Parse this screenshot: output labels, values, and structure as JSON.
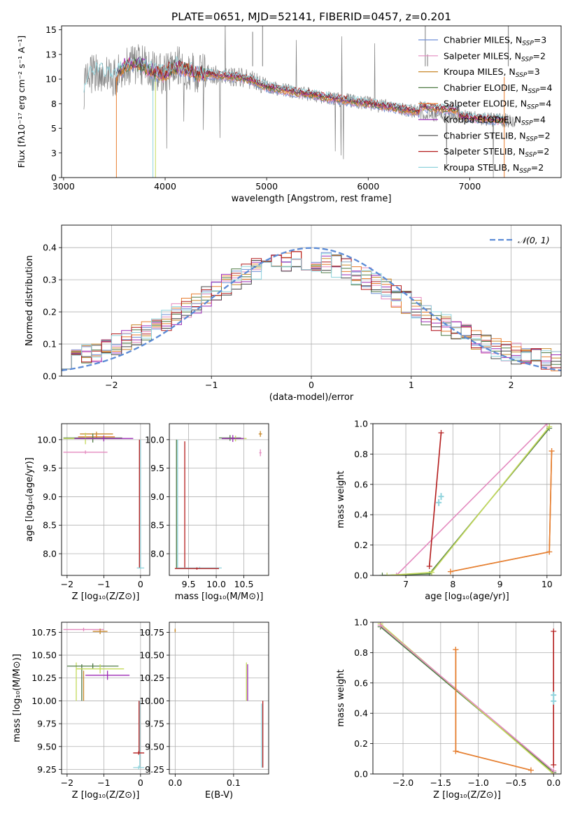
{
  "chart_data": [
    {
      "type": "line",
      "title": "PLATE=0651, MJD=52141, FIBERID=0457, z=0.201",
      "xlabel": "wavelength [Angstrom, rest frame]",
      "ylabel": "Flux [fλ10⁻¹⁷ erg cm⁻² s⁻¹ A⁻¹]",
      "xlim": [
        2980,
        7900
      ],
      "ylim": [
        0,
        15.4
      ],
      "xticks": [
        3000,
        4000,
        5000,
        6000,
        7000
      ],
      "yticks": [
        0.0,
        2.5,
        5.0,
        7.5,
        10.0,
        12.5,
        15.0
      ],
      "grid": false,
      "legend_position": "upper-right",
      "spectrum_shape": {
        "data_range": [
          3200,
          7450
        ],
        "wave": [
          3200,
          3250,
          3300,
          3400,
          3500,
          3600,
          3700,
          3800,
          3900,
          4000,
          4100,
          4200,
          4300,
          4500,
          4700,
          4850,
          5000,
          5200,
          5400,
          5600,
          5800,
          6000,
          6200,
          6400,
          6600,
          6800,
          7000,
          7200,
          7400,
          7450
        ],
        "flux": [
          9.0,
          10.2,
          10.8,
          10.6,
          10.2,
          11.4,
          11.6,
          11.3,
          10.7,
          10.5,
          11.3,
          11.0,
          10.6,
          10.4,
          10.2,
          9.9,
          9.2,
          8.8,
          8.5,
          8.1,
          7.8,
          7.5,
          7.2,
          6.8,
          6.5,
          6.3,
          6.1,
          5.9,
          5.8,
          5.8
        ]
      },
      "legend": [
        {
          "label": "Chabrier MILES, N",
          "sub": "SSP",
          "suffix": "=3",
          "color": "#6f8fd6"
        },
        {
          "label": "Salpeter MILES, N",
          "sub": "SSP",
          "suffix": "=2",
          "color": "#e48abf"
        },
        {
          "label": "Kroupa MILES, N",
          "sub": "SSP",
          "suffix": "=3",
          "color": "#c8882a"
        },
        {
          "label": "Chabrier ELODIE, N",
          "sub": "SSP",
          "suffix": "=4",
          "color": "#4f7a44"
        },
        {
          "label": "Salpeter ELODIE, N",
          "sub": "SSP",
          "suffix": "=4",
          "color": "#e87d2f"
        },
        {
          "label": "Kroupa ELODIE, N",
          "sub": "SSP",
          "suffix": "=4",
          "color": "#9b2ab4"
        },
        {
          "label": "Chabrier STELIB, N",
          "sub": "SSP",
          "suffix": "=2",
          "color": "#444444"
        },
        {
          "label": "Salpeter STELIB, N",
          "sub": "SSP",
          "suffix": "=2",
          "color": "#b31b1b"
        },
        {
          "label": "Kroupa STELIB, N",
          "sub": "SSP",
          "suffix": "=2",
          "color": "#8fd3dc"
        }
      ]
    },
    {
      "type": "line",
      "xlabel": "(data-model)/error",
      "ylabel": "Normed distribution",
      "xlim": [
        -2.5,
        2.5
      ],
      "ylim": [
        0,
        0.47
      ],
      "xticks": [
        -2,
        -1,
        0,
        1,
        2
      ],
      "yticks": [
        0.0,
        0.1,
        0.2,
        0.3,
        0.4
      ],
      "grid": true,
      "legend_position": "upper-right",
      "legend": [
        {
          "label": "𝒩(0, 1)",
          "color": "#5b8bd6",
          "style": "dashed"
        }
      ],
      "gaussian": {
        "mean": 0,
        "sigma": 1
      }
    },
    {
      "type": "scatter",
      "xlabel": "Z [log₁₀(Z/Z⊙)]",
      "ylabel": "age  [log₁₀(age/yr)]",
      "xlim": [
        -2.15,
        0.25
      ],
      "ylim": [
        7.62,
        10.28
      ],
      "xticks": [
        -2,
        -1,
        0
      ],
      "yticks": [
        8.0,
        8.5,
        9.0,
        9.5,
        10.0
      ],
      "grid": true,
      "points": [
        {
          "x": -1.2,
          "y": 10.1,
          "xerr": 0.45,
          "yerr": 0.04,
          "color": "#c8882a"
        },
        {
          "x": -1.5,
          "y": 9.78,
          "xerr": 0.6,
          "yerr": 0.03,
          "color": "#e48abf"
        },
        {
          "x": -1.2,
          "y": 10.05,
          "xerr": 0.5,
          "yerr": 0.03,
          "color": "#e87d2f"
        },
        {
          "x": -1.3,
          "y": 10.03,
          "xerr": 0.8,
          "yerr": 0.08,
          "color": "#4f7a44"
        },
        {
          "x": -1.5,
          "y": 10.02,
          "xerr": 0.6,
          "yerr": 0.1,
          "color": "#c4da5a"
        },
        {
          "x": -1.0,
          "y": 10.02,
          "xerr": 0.8,
          "yerr": 0.05,
          "color": "#9b2ab4"
        },
        {
          "x": 0.0,
          "y": 7.75,
          "xerr": 0.1,
          "yerr": 0.02,
          "color": "#8fd3dc"
        }
      ],
      "vertical_lines": [
        {
          "x": 0.0,
          "y0": 7.75,
          "y1": 10.0,
          "color": "#8fd3dc"
        },
        {
          "x": -0.03,
          "y0": 7.75,
          "y1": 10.0,
          "color": "#b31b1b"
        }
      ]
    },
    {
      "type": "scatter",
      "xlabel": "mass [log₁₀(M/M⊙)]",
      "ylabel": "",
      "xlim": [
        9.15,
        10.95
      ],
      "ylim": [
        7.62,
        10.28
      ],
      "xticks": [
        9.5,
        10.0,
        10.5
      ],
      "yticks": [
        8.0,
        8.5,
        9.0,
        9.5,
        10.0
      ],
      "grid": true,
      "points": [
        {
          "x": 10.8,
          "y": 10.1,
          "xerr": 0.03,
          "yerr": 0.05,
          "color": "#c8882a"
        },
        {
          "x": 10.8,
          "y": 9.77,
          "xerr": 0.02,
          "yerr": 0.06,
          "color": "#e48abf"
        },
        {
          "x": 10.25,
          "y": 10.03,
          "xerr": 0.2,
          "yerr": 0.05,
          "color": "#4f7a44"
        },
        {
          "x": 10.35,
          "y": 10.02,
          "xerr": 0.2,
          "yerr": 0.05,
          "color": "#c4da5a"
        },
        {
          "x": 10.3,
          "y": 10.02,
          "xerr": 0.2,
          "yerr": 0.06,
          "color": "#9b2ab4"
        },
        {
          "x": 9.7,
          "y": 7.75,
          "xerr": 0.4,
          "yerr": 0.02,
          "color": "#8fd3dc"
        },
        {
          "x": 9.65,
          "y": 7.74,
          "xerr": 0.4,
          "yerr": 0.02,
          "color": "#b31b1b"
        }
      ],
      "vertical_lines": [
        {
          "x": 9.3,
          "y0": 7.75,
          "y1": 10.0,
          "color": "#8fd3dc"
        },
        {
          "x": 9.28,
          "y0": 7.75,
          "y1": 10.0,
          "color": "#4f7a44"
        },
        {
          "x": 9.43,
          "y0": 7.75,
          "y1": 9.97,
          "color": "#b31b1b"
        }
      ]
    },
    {
      "type": "line",
      "xlabel": "age  [log₁₀(age/yr)]",
      "ylabel": "mass weight",
      "xlim": [
        6.3,
        10.3
      ],
      "ylim": [
        0,
        1.0
      ],
      "xticks": [
        7,
        8,
        9,
        10
      ],
      "yticks": [
        0.0,
        0.2,
        0.4,
        0.6,
        0.8,
        1.0
      ],
      "grid": true,
      "series": [
        {
          "color": "#e48abf",
          "x": [
            6.8,
            10.0
          ],
          "y": [
            0.0,
            1.0
          ]
        },
        {
          "color": "#4f7a44",
          "x": [
            6.5,
            7.5,
            10.05
          ],
          "y": [
            0.0,
            0.01,
            0.97
          ]
        },
        {
          "color": "#c4da5a",
          "x": [
            6.6,
            7.55,
            10.05
          ],
          "y": [
            0.0,
            0.02,
            0.98
          ]
        },
        {
          "color": "#b31b1b",
          "x": [
            7.5,
            7.75
          ],
          "y": [
            0.06,
            0.94
          ]
        },
        {
          "color": "#c8882a",
          "x": [
            7.95,
            10.05,
            10.1
          ],
          "y": [
            0.025,
            0.155,
            0.82
          ]
        },
        {
          "color": "#e87d2f",
          "x": [
            7.95,
            10.05,
            10.1
          ],
          "y": [
            0.025,
            0.155,
            0.82
          ]
        }
      ],
      "points": [
        {
          "x": 7.7,
          "y": 0.48,
          "color": "#8fd3dc"
        },
        {
          "x": 7.75,
          "y": 0.52,
          "color": "#8fd3dc"
        }
      ]
    },
    {
      "type": "scatter",
      "xlabel": "Z [log₁₀(Z/Z⊙)]",
      "ylabel": "mass [log₁₀(M/M⊙)]",
      "xlim": [
        -2.15,
        0.25
      ],
      "ylim": [
        9.2,
        10.86
      ],
      "xticks": [
        -2,
        -1,
        0
      ],
      "yticks": [
        9.25,
        9.5,
        9.75,
        10.0,
        10.25,
        10.5,
        10.75
      ],
      "grid": true,
      "points": [
        {
          "x": -1.55,
          "y": 10.78,
          "xerr": 0.55,
          "yerr": 0.02,
          "color": "#e48abf"
        },
        {
          "x": -1.1,
          "y": 10.76,
          "xerr": 0.2,
          "yerr": 0.03,
          "color": "#c8882a"
        },
        {
          "x": -1.3,
          "y": 10.38,
          "xerr": 0.7,
          "yerr": 0.03,
          "color": "#4f7a44"
        },
        {
          "x": -1.1,
          "y": 10.35,
          "xerr": 0.65,
          "yerr": 0.05,
          "color": "#c4da5a"
        },
        {
          "x": -0.9,
          "y": 10.28,
          "xerr": 0.6,
          "yerr": 0.05,
          "color": "#9b2ab4"
        },
        {
          "x": -0.05,
          "y": 9.43,
          "xerr": 0.15,
          "yerr": 0.02,
          "color": "#b31b1b"
        },
        {
          "x": -0.05,
          "y": 9.27,
          "xerr": 0.15,
          "yerr": 0.02,
          "color": "#8fd3dc"
        }
      ],
      "vertical_lines": [
        {
          "x": -1.75,
          "y0": 10.0,
          "y1": 10.42,
          "color": "#c4da5a"
        },
        {
          "x": -1.6,
          "y0": 10.0,
          "y1": 10.4,
          "color": "#4f7a44"
        },
        {
          "x": -1.55,
          "y0": 10.0,
          "y1": 10.33,
          "color": "#c8882a"
        },
        {
          "x": -0.02,
          "y0": 9.27,
          "y1": 10.0,
          "color": "#8fd3dc"
        },
        {
          "x": -0.04,
          "y0": 9.43,
          "y1": 10.0,
          "color": "#b31b1b"
        }
      ]
    },
    {
      "type": "scatter",
      "xlabel": "E(B-V)",
      "ylabel": "",
      "xlim": [
        -0.01,
        0.16
      ],
      "ylim": [
        9.2,
        10.86
      ],
      "xticks": [
        0.0,
        0.1
      ],
      "yticks": [
        9.25,
        9.5,
        9.75,
        10.0,
        10.25,
        10.5,
        10.75
      ],
      "grid": true,
      "points": [
        {
          "x": 0.0,
          "y": 10.77,
          "xerr": 0.001,
          "yerr": 0.02,
          "color": "#c8882a"
        }
      ],
      "vertical_lines": [
        {
          "x": 0.122,
          "y0": 10.0,
          "y1": 10.42,
          "color": "#c4da5a"
        },
        {
          "x": 0.124,
          "y0": 10.0,
          "y1": 10.4,
          "color": "#9b2ab4"
        },
        {
          "x": 0.15,
          "y0": 9.27,
          "y1": 10.0,
          "color": "#b31b1b"
        },
        {
          "x": 0.148,
          "y0": 9.27,
          "y1": 9.97,
          "color": "#8fd3dc"
        }
      ]
    },
    {
      "type": "line",
      "xlabel": "Z [log₁₀(Z/Z⊙)]",
      "ylabel": "mass weight",
      "xlim": [
        -2.4,
        0.1
      ],
      "ylim": [
        0,
        1.0
      ],
      "xticks": [
        -2.0,
        -1.5,
        -1.0,
        -0.5,
        0.0
      ],
      "yticks": [
        0.0,
        0.2,
        0.4,
        0.6,
        0.8,
        1.0
      ],
      "grid": true,
      "series": [
        {
          "color": "#4f7a44",
          "x": [
            -2.3,
            0.0
          ],
          "y": [
            0.97,
            0.01
          ]
        },
        {
          "color": "#c4da5a",
          "x": [
            -2.3,
            0.0
          ],
          "y": [
            0.99,
            0.0
          ]
        },
        {
          "color": "#e48abf",
          "x": [
            -2.3,
            0.0
          ],
          "y": [
            0.98,
            0.02
          ]
        },
        {
          "color": "#c8882a",
          "x": [
            -1.3,
            -1.3,
            -0.3
          ],
          "y": [
            0.82,
            0.15,
            0.025
          ]
        },
        {
          "color": "#e87d2f",
          "x": [
            -1.3,
            -1.3,
            -0.3
          ],
          "y": [
            0.82,
            0.15,
            0.025
          ]
        },
        {
          "color": "#b31b1b",
          "x": [
            0.0,
            0.0
          ],
          "y": [
            0.06,
            0.94
          ]
        }
      ],
      "points": [
        {
          "x": 0.0,
          "y": 0.48,
          "color": "#8fd3dc"
        },
        {
          "x": 0.0,
          "y": 0.52,
          "color": "#8fd3dc"
        }
      ]
    }
  ]
}
